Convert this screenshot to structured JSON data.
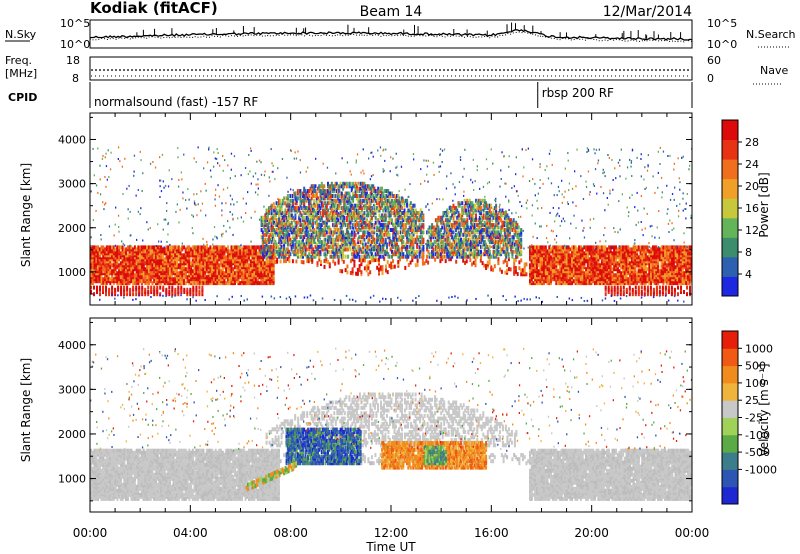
{
  "header": {
    "station": "Kodiak (fitACF)",
    "beam": "Beam 14",
    "date": "12/Mar/2014"
  },
  "noise_panel": {
    "left_label": "N.Sky",
    "right_label": "N.Search",
    "left_ticks": [
      "10^5",
      "10^0"
    ],
    "right_ticks": [
      "10^5",
      "10^0"
    ]
  },
  "freq_panel": {
    "left_label_1": "Freq.",
    "left_label_2": "[MHz]",
    "right_label": "Nave",
    "left_ticks": [
      "18",
      "8"
    ],
    "right_ticks": [
      "60",
      "0"
    ]
  },
  "cpid_panel": {
    "label": "CPID",
    "mode_1": "normalsound (fast) -157 RF",
    "mode_2": "rbsp 200 RF",
    "mode_2_start_hours": 17.85
  },
  "chart_data": [
    {
      "type": "heatmap",
      "title": "Power",
      "ylabel": "Slant Range [km]",
      "ylim": [
        250,
        4600
      ],
      "yticks": [
        "1000",
        "2000",
        "3000",
        "4000"
      ],
      "xlim_hours": [
        0,
        24
      ],
      "colorbar": {
        "label": "Power [dB]",
        "ticks": [
          "4",
          "8",
          "12",
          "16",
          "20",
          "24",
          "28"
        ],
        "colors": [
          "#1e28e0",
          "#2d60b0",
          "#3c8c6e",
          "#64b45a",
          "#c8c83c",
          "#f0a028",
          "#f06e1e",
          "#e83214",
          "#dc0a0a"
        ]
      },
      "regions": [
        {
          "name": "low-range-band",
          "t": [
            0,
            24
          ],
          "r": [
            700,
            1550
          ],
          "dominant": "red"
        },
        {
          "name": "morning-scatter-arc",
          "t": [
            6.8,
            13.3
          ],
          "r": [
            1300,
            3000
          ],
          "dominant": "green-blue-orange"
        },
        {
          "name": "afternoon-scatter-arc",
          "t": [
            13.4,
            17.2
          ],
          "r": [
            1300,
            2600
          ],
          "dominant": "green-blue"
        }
      ]
    },
    {
      "type": "heatmap",
      "title": "Velocity",
      "ylabel": "Slant Range [km]",
      "ylim": [
        250,
        4600
      ],
      "yticks": [
        "1000",
        "2000",
        "3000",
        "4000"
      ],
      "xlim_hours": [
        0,
        24
      ],
      "xticks": [
        "00:00",
        "04:00",
        "08:00",
        "12:00",
        "16:00",
        "20:00",
        "00:00"
      ],
      "xlabel": "Time UT",
      "colorbar": {
        "label": "Velocity [m s⁻¹]",
        "ticks": [
          "1000",
          "500",
          "100",
          "25",
          "-25",
          "-100",
          "-500",
          "-1000"
        ],
        "colors": [
          "#1e28d2",
          "#2d55b4",
          "#3c7d8c",
          "#5aaa46",
          "#a0d25a",
          "#c8c8c8",
          "#f0b43c",
          "#f08c1e",
          "#f05a14",
          "#e61e0a"
        ]
      },
      "regions": [
        {
          "name": "ground-scatter-band",
          "t": [
            0,
            24
          ],
          "r": [
            500,
            1600
          ],
          "dominant": "gray"
        },
        {
          "name": "toward-radar-flow",
          "t": [
            7.8,
            10.8
          ],
          "r": [
            1300,
            2100
          ],
          "dominant": "blue-green"
        },
        {
          "name": "away-flow",
          "t": [
            11.6,
            15.8
          ],
          "r": [
            1200,
            1800
          ],
          "dominant": "orange"
        },
        {
          "name": "post-noon-green",
          "t": [
            13.3,
            14.2
          ],
          "r": [
            1300,
            1700
          ],
          "dominant": "green"
        }
      ]
    }
  ]
}
